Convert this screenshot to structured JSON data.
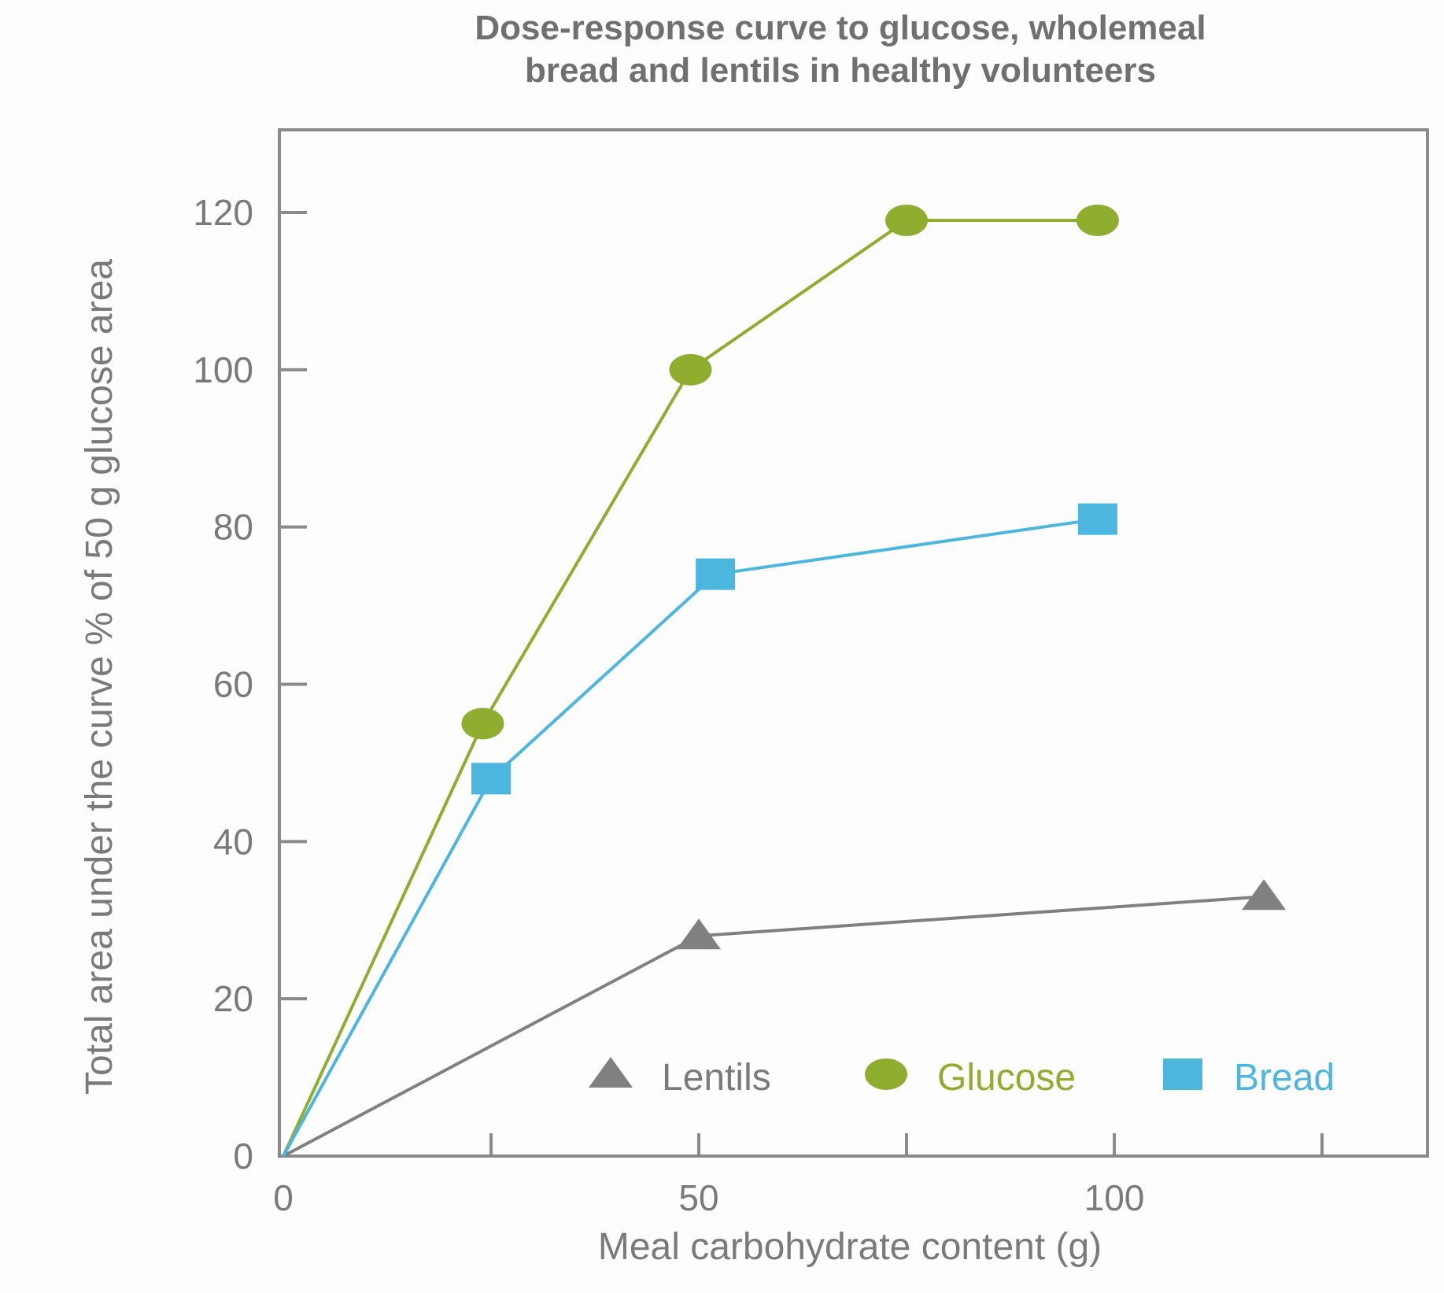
{
  "chart_data": {
    "type": "line",
    "title": "Dose-response curve to glucose, wholemeal bread and lentils in healthy volunteers",
    "title_lines": [
      "Dose-response curve to glucose, wholemeal",
      "bread and lentils in healthy volunteers"
    ],
    "xlabel": "Meal carbohydrate content (g)",
    "ylabel": "Total area under the curve % of 50 g glucose area",
    "xlim": [
      0,
      137
    ],
    "ylim": [
      0,
      129
    ],
    "x_ticks": [
      0,
      25,
      50,
      75,
      100,
      125
    ],
    "x_tick_labels": [
      "0",
      "",
      "50",
      "",
      "100",
      ""
    ],
    "y_ticks": [
      0,
      20,
      40,
      60,
      80,
      100,
      120
    ],
    "y_tick_labels": [
      "0",
      "20",
      "40",
      "60",
      "80",
      "100",
      "120"
    ],
    "grid": false,
    "legend_placement": "bottom-right",
    "series": [
      {
        "name": "Lentils",
        "marker": "triangle",
        "color": "#808080",
        "x": [
          0,
          50,
          118
        ],
        "y": [
          0,
          28,
          33
        ]
      },
      {
        "name": "Glucose",
        "marker": "circle",
        "color": "#8fad2f",
        "x": [
          0,
          24,
          49,
          75,
          98
        ],
        "y": [
          0,
          55,
          100,
          119,
          119
        ]
      },
      {
        "name": "Bread",
        "marker": "square",
        "color": "#4db6df",
        "x": [
          0,
          25,
          52,
          98
        ],
        "y": [
          0,
          48,
          74,
          81
        ]
      }
    ]
  }
}
